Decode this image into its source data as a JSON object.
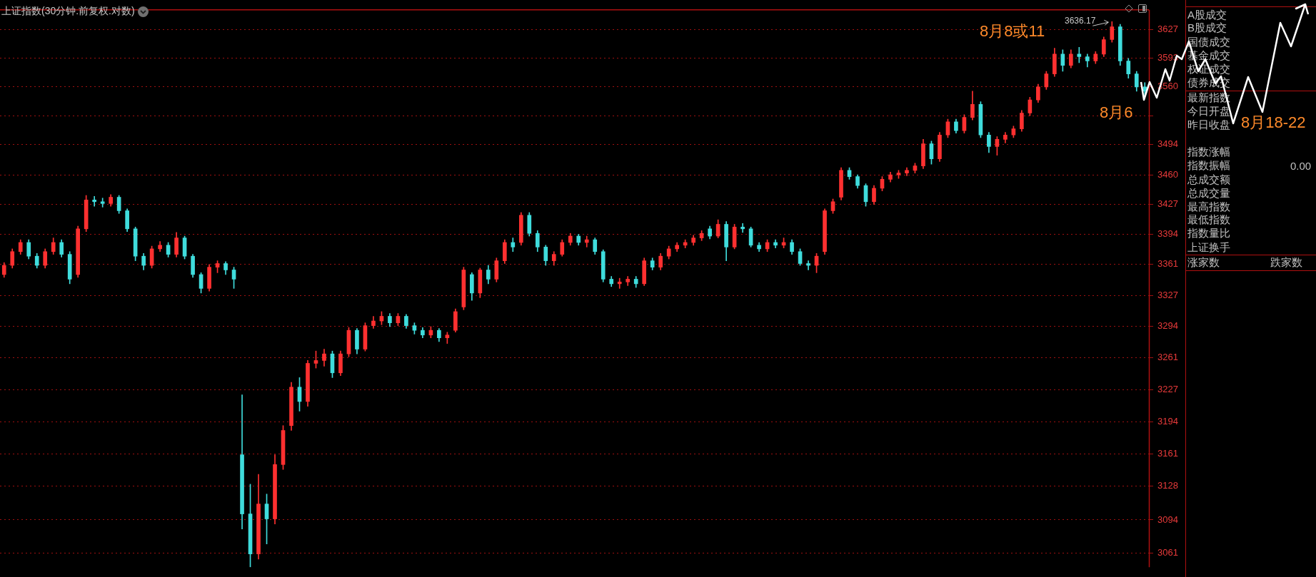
{
  "chart_data": [
    {
      "type": "candlestick",
      "title": "上证指数(30分钟.前复权.对数)",
      "categories": [
        null,
        null,
        null,
        null,
        null,
        null,
        null,
        null,
        null,
        null,
        null,
        null,
        null,
        null,
        null,
        null,
        null,
        null,
        null,
        null,
        null,
        null,
        null,
        null,
        null,
        null,
        null,
        null,
        null,
        null,
        null,
        null,
        null,
        null,
        null,
        null,
        null,
        null,
        null,
        null,
        null,
        null,
        null,
        null,
        null,
        null,
        null,
        null,
        null,
        null,
        null,
        null,
        null,
        null,
        null,
        null,
        null,
        null,
        null,
        null,
        null,
        null,
        null,
        null,
        null,
        null,
        null,
        null,
        null,
        null,
        null,
        null,
        null,
        null,
        null,
        null,
        null,
        null,
        null,
        null,
        null,
        null,
        null,
        null,
        null,
        null,
        null,
        null,
        null,
        null,
        null,
        null,
        null,
        null,
        null,
        null,
        null,
        null,
        null,
        null,
        null,
        null,
        null,
        null,
        null,
        null,
        null,
        null,
        null,
        null,
        null,
        null,
        null,
        null,
        null,
        null,
        null,
        null,
        null,
        null,
        null,
        null,
        null,
        null,
        null,
        null,
        null,
        null,
        null,
        null,
        null,
        null,
        null,
        null,
        null,
        null,
        null,
        null,
        null,
        null
      ],
      "ohlc": [
        [
          3350,
          3363,
          3347,
          3360
        ],
        [
          3360,
          3378,
          3357,
          3375
        ],
        [
          3375,
          3388,
          3372,
          3385
        ],
        [
          3385,
          3388,
          3367,
          3370
        ],
        [
          3370,
          3373,
          3357,
          3360
        ],
        [
          3360,
          3378,
          3357,
          3375
        ],
        [
          3375,
          3390,
          3372,
          3385
        ],
        [
          3385,
          3388,
          3369,
          3372
        ],
        [
          3372,
          3375,
          3340,
          3345
        ],
        [
          3350,
          3403,
          3347,
          3400
        ],
        [
          3400,
          3437,
          3397,
          3432
        ],
        [
          3432,
          3436,
          3425,
          3430
        ],
        [
          3430,
          3434,
          3424,
          3428
        ],
        [
          3428,
          3438,
          3425,
          3435
        ],
        [
          3435,
          3437,
          3417,
          3420
        ],
        [
          3420,
          3422,
          3397,
          3400
        ],
        [
          3400,
          3402,
          3365,
          3370
        ],
        [
          3370,
          3373,
          3355,
          3360
        ],
        [
          3360,
          3381,
          3357,
          3378
        ],
        [
          3378,
          3386,
          3375,
          3382
        ],
        [
          3382,
          3385,
          3369,
          3372
        ],
        [
          3372,
          3396,
          3369,
          3390
        ],
        [
          3390,
          3392,
          3367,
          3370
        ],
        [
          3370,
          3372,
          3347,
          3350
        ],
        [
          3350,
          3352,
          3330,
          3335
        ],
        [
          3335,
          3361,
          3332,
          3358
        ],
        [
          3358,
          3365,
          3352,
          3362
        ],
        [
          3362,
          3364,
          3350,
          3355
        ],
        [
          3355,
          3358,
          3335,
          3345
        ],
        [
          3160,
          3222,
          3085,
          3100
        ],
        [
          3100,
          3130,
          3047,
          3060
        ],
        [
          3060,
          3140,
          3055,
          3110
        ],
        [
          3110,
          3120,
          3070,
          3095
        ],
        [
          3095,
          3160,
          3090,
          3150
        ],
        [
          3150,
          3190,
          3145,
          3185
        ],
        [
          3190,
          3235,
          3185,
          3230
        ],
        [
          3230,
          3240,
          3205,
          3215
        ],
        [
          3215,
          3258,
          3210,
          3255
        ],
        [
          3255,
          3268,
          3250,
          3258
        ],
        [
          3258,
          3270,
          3252,
          3265
        ],
        [
          3265,
          3268,
          3240,
          3245
        ],
        [
          3245,
          3268,
          3242,
          3265
        ],
        [
          3265,
          3293,
          3262,
          3290
        ],
        [
          3290,
          3292,
          3265,
          3270
        ],
        [
          3270,
          3298,
          3268,
          3295
        ],
        [
          3295,
          3305,
          3292,
          3300
        ],
        [
          3300,
          3310,
          3296,
          3305
        ],
        [
          3305,
          3308,
          3294,
          3298
        ],
        [
          3298,
          3308,
          3295,
          3305
        ],
        [
          3305,
          3307,
          3292,
          3295
        ],
        [
          3295,
          3298,
          3286,
          3290
        ],
        [
          3290,
          3293,
          3282,
          3285
        ],
        [
          3285,
          3294,
          3282,
          3290
        ],
        [
          3290,
          3292,
          3278,
          3282
        ],
        [
          3282,
          3288,
          3276,
          3285
        ],
        [
          3290,
          3313,
          3288,
          3310
        ],
        [
          3315,
          3358,
          3312,
          3355
        ],
        [
          3350,
          3352,
          3322,
          3330
        ],
        [
          3330,
          3357,
          3325,
          3355
        ],
        [
          3355,
          3360,
          3340,
          3345
        ],
        [
          3345,
          3368,
          3342,
          3365
        ],
        [
          3365,
          3388,
          3362,
          3385
        ],
        [
          3385,
          3390,
          3375,
          3380
        ],
        [
          3385,
          3418,
          3382,
          3415
        ],
        [
          3415,
          3418,
          3392,
          3395
        ],
        [
          3395,
          3398,
          3375,
          3380
        ],
        [
          3380,
          3382,
          3360,
          3365
        ],
        [
          3365,
          3375,
          3360,
          3372
        ],
        [
          3372,
          3388,
          3370,
          3385
        ],
        [
          3385,
          3395,
          3382,
          3392
        ],
        [
          3392,
          3394,
          3382,
          3385
        ],
        [
          3385,
          3392,
          3380,
          3388
        ],
        [
          3388,
          3390,
          3372,
          3375
        ],
        [
          3375,
          3377,
          3342,
          3345
        ],
        [
          3345,
          3348,
          3337,
          3340
        ],
        [
          3340,
          3346,
          3335,
          3342
        ],
        [
          3342,
          3348,
          3338,
          3345
        ],
        [
          3345,
          3348,
          3336,
          3340
        ],
        [
          3340,
          3368,
          3338,
          3365
        ],
        [
          3365,
          3368,
          3355,
          3358
        ],
        [
          3358,
          3373,
          3355,
          3370
        ],
        [
          3370,
          3381,
          3367,
          3378
        ],
        [
          3378,
          3385,
          3375,
          3382
        ],
        [
          3382,
          3388,
          3379,
          3385
        ],
        [
          3385,
          3393,
          3382,
          3390
        ],
        [
          3390,
          3398,
          3387,
          3395
        ],
        [
          3400,
          3403,
          3389,
          3392
        ],
        [
          3392,
          3410,
          3390,
          3405
        ],
        [
          3405,
          3408,
          3365,
          3380
        ],
        [
          3380,
          3405,
          3378,
          3402
        ],
        [
          3402,
          3406,
          3396,
          3400
        ],
        [
          3400,
          3402,
          3380,
          3382
        ],
        [
          3382,
          3385,
          3375,
          3378
        ],
        [
          3378,
          3388,
          3375,
          3385
        ],
        [
          3385,
          3388,
          3379,
          3382
        ],
        [
          3382,
          3390,
          3379,
          3385
        ],
        [
          3385,
          3388,
          3372,
          3375
        ],
        [
          3375,
          3378,
          3360,
          3362
        ],
        [
          3362,
          3365,
          3355,
          3360
        ],
        [
          3360,
          3373,
          3352,
          3370
        ],
        [
          3375,
          3422,
          3372,
          3420
        ],
        [
          3420,
          3433,
          3417,
          3430
        ],
        [
          3435,
          3468,
          3432,
          3465
        ],
        [
          3465,
          3468,
          3455,
          3458
        ],
        [
          3458,
          3460,
          3445,
          3448
        ],
        [
          3448,
          3450,
          3425,
          3430
        ],
        [
          3430,
          3448,
          3427,
          3445
        ],
        [
          3445,
          3458,
          3442,
          3455
        ],
        [
          3455,
          3463,
          3452,
          3460
        ],
        [
          3460,
          3465,
          3456,
          3462
        ],
        [
          3462,
          3468,
          3459,
          3465
        ],
        [
          3465,
          3473,
          3462,
          3470
        ],
        [
          3470,
          3500,
          3467,
          3495
        ],
        [
          3495,
          3498,
          3472,
          3478
        ],
        [
          3478,
          3508,
          3475,
          3505
        ],
        [
          3505,
          3523,
          3502,
          3520
        ],
        [
          3520,
          3523,
          3507,
          3510
        ],
        [
          3510,
          3528,
          3507,
          3525
        ],
        [
          3525,
          3555,
          3522,
          3540
        ],
        [
          3540,
          3543,
          3502,
          3505
        ],
        [
          3505,
          3508,
          3485,
          3492
        ],
        [
          3492,
          3503,
          3482,
          3500
        ],
        [
          3500,
          3508,
          3496,
          3505
        ],
        [
          3505,
          3515,
          3502,
          3512
        ],
        [
          3512,
          3533,
          3509,
          3530
        ],
        [
          3530,
          3548,
          3527,
          3545
        ],
        [
          3545,
          3563,
          3542,
          3560
        ],
        [
          3560,
          3578,
          3557,
          3575
        ],
        [
          3575,
          3605,
          3572,
          3598
        ],
        [
          3598,
          3603,
          3578,
          3585
        ],
        [
          3585,
          3603,
          3582,
          3598
        ],
        [
          3598,
          3606,
          3588,
          3595
        ],
        [
          3595,
          3598,
          3583,
          3590
        ],
        [
          3590,
          3601,
          3587,
          3598
        ],
        [
          3598,
          3618,
          3595,
          3615
        ],
        [
          3615,
          3636.17,
          3612,
          3630
        ],
        [
          3630,
          3633,
          3585,
          3590
        ],
        [
          3590,
          3593,
          3570,
          3575
        ],
        [
          3575,
          3578,
          3555,
          3560
        ],
        [
          3560,
          3565,
          3548,
          3555
        ]
      ],
      "ylim": [
        3047,
        3650
      ],
      "yticks": [
        3061,
        3094,
        3128,
        3161,
        3194,
        3227,
        3261,
        3294,
        3327,
        3361,
        3394,
        3427,
        3460,
        3494,
        {
          "value": 3527,
          "label": null
        },
        3560,
        3593,
        3627
      ],
      "log": true,
      "grid": "y",
      "tick_labels": "y",
      "annotations": [
        "3636.17",
        "8月6",
        "8月8或11",
        "8月18-22"
      ]
    },
    {
      "type": "other",
      "annotations": [
        "A股成交",
        "B股成交",
        "国债成交",
        "基金成交",
        "权证成交",
        "债券成交",
        "最新指数",
        "今日开盘",
        "昨日收盘",
        "指数涨幅",
        "指数振幅",
        "总成交额",
        "总成交量",
        "最高指数",
        "最低指数",
        "指数量比",
        "上证换手",
        "涨家数",
        "跌家数",
        "0.00"
      ]
    }
  ]
}
